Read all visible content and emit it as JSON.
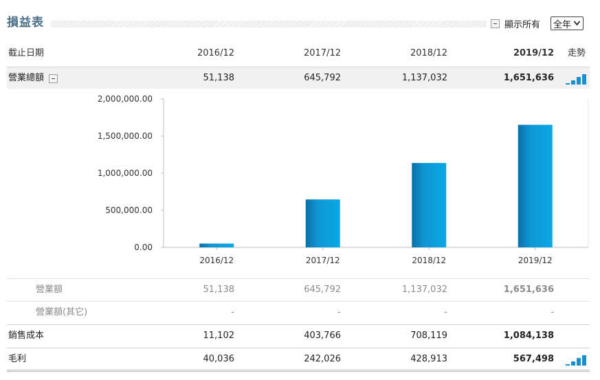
{
  "section": {
    "title": "損益表",
    "show_all_label": "顯示所有",
    "period_select_value": "全年"
  },
  "header": {
    "label": "截止日期",
    "periods": [
      "2016/12",
      "2017/12",
      "2018/12",
      "2019/12"
    ],
    "trend_label": "走勢"
  },
  "rows": {
    "total_revenue": {
      "label": "營業總額",
      "values": [
        "51,138",
        "645,792",
        "1,137,032",
        "1,651,636"
      ]
    },
    "revenue": {
      "label": "營業額",
      "values": [
        "51,138",
        "645,792",
        "1,137,032",
        "1,651,636"
      ]
    },
    "other_revenue": {
      "label": "營業額(其它)",
      "values": [
        "-",
        "-",
        "-",
        "-"
      ]
    },
    "cost_of_sales": {
      "label": "銷售成本",
      "values": [
        "11,102",
        "403,766",
        "708,119",
        "1,084,138"
      ]
    },
    "gross_profit": {
      "label": "毛利",
      "values": [
        "40,036",
        "242,026",
        "428,913",
        "567,498"
      ]
    }
  },
  "chart_data": {
    "type": "bar",
    "categories": [
      "2016/12",
      "2017/12",
      "2018/12",
      "2019/12"
    ],
    "values": [
      51138,
      645792,
      1137032,
      1651636
    ],
    "title": "",
    "xlabel": "",
    "ylabel": "",
    "ylim": [
      0,
      2000000
    ],
    "yticks": [
      "0.00",
      "500,000.00",
      "1,000,000.00",
      "1,500,000.00",
      "2,000,000.00"
    ],
    "grid": false,
    "bar_color": "#0f97d2"
  },
  "trend_icon_colors": {
    "bar": "#1a8fd0"
  }
}
